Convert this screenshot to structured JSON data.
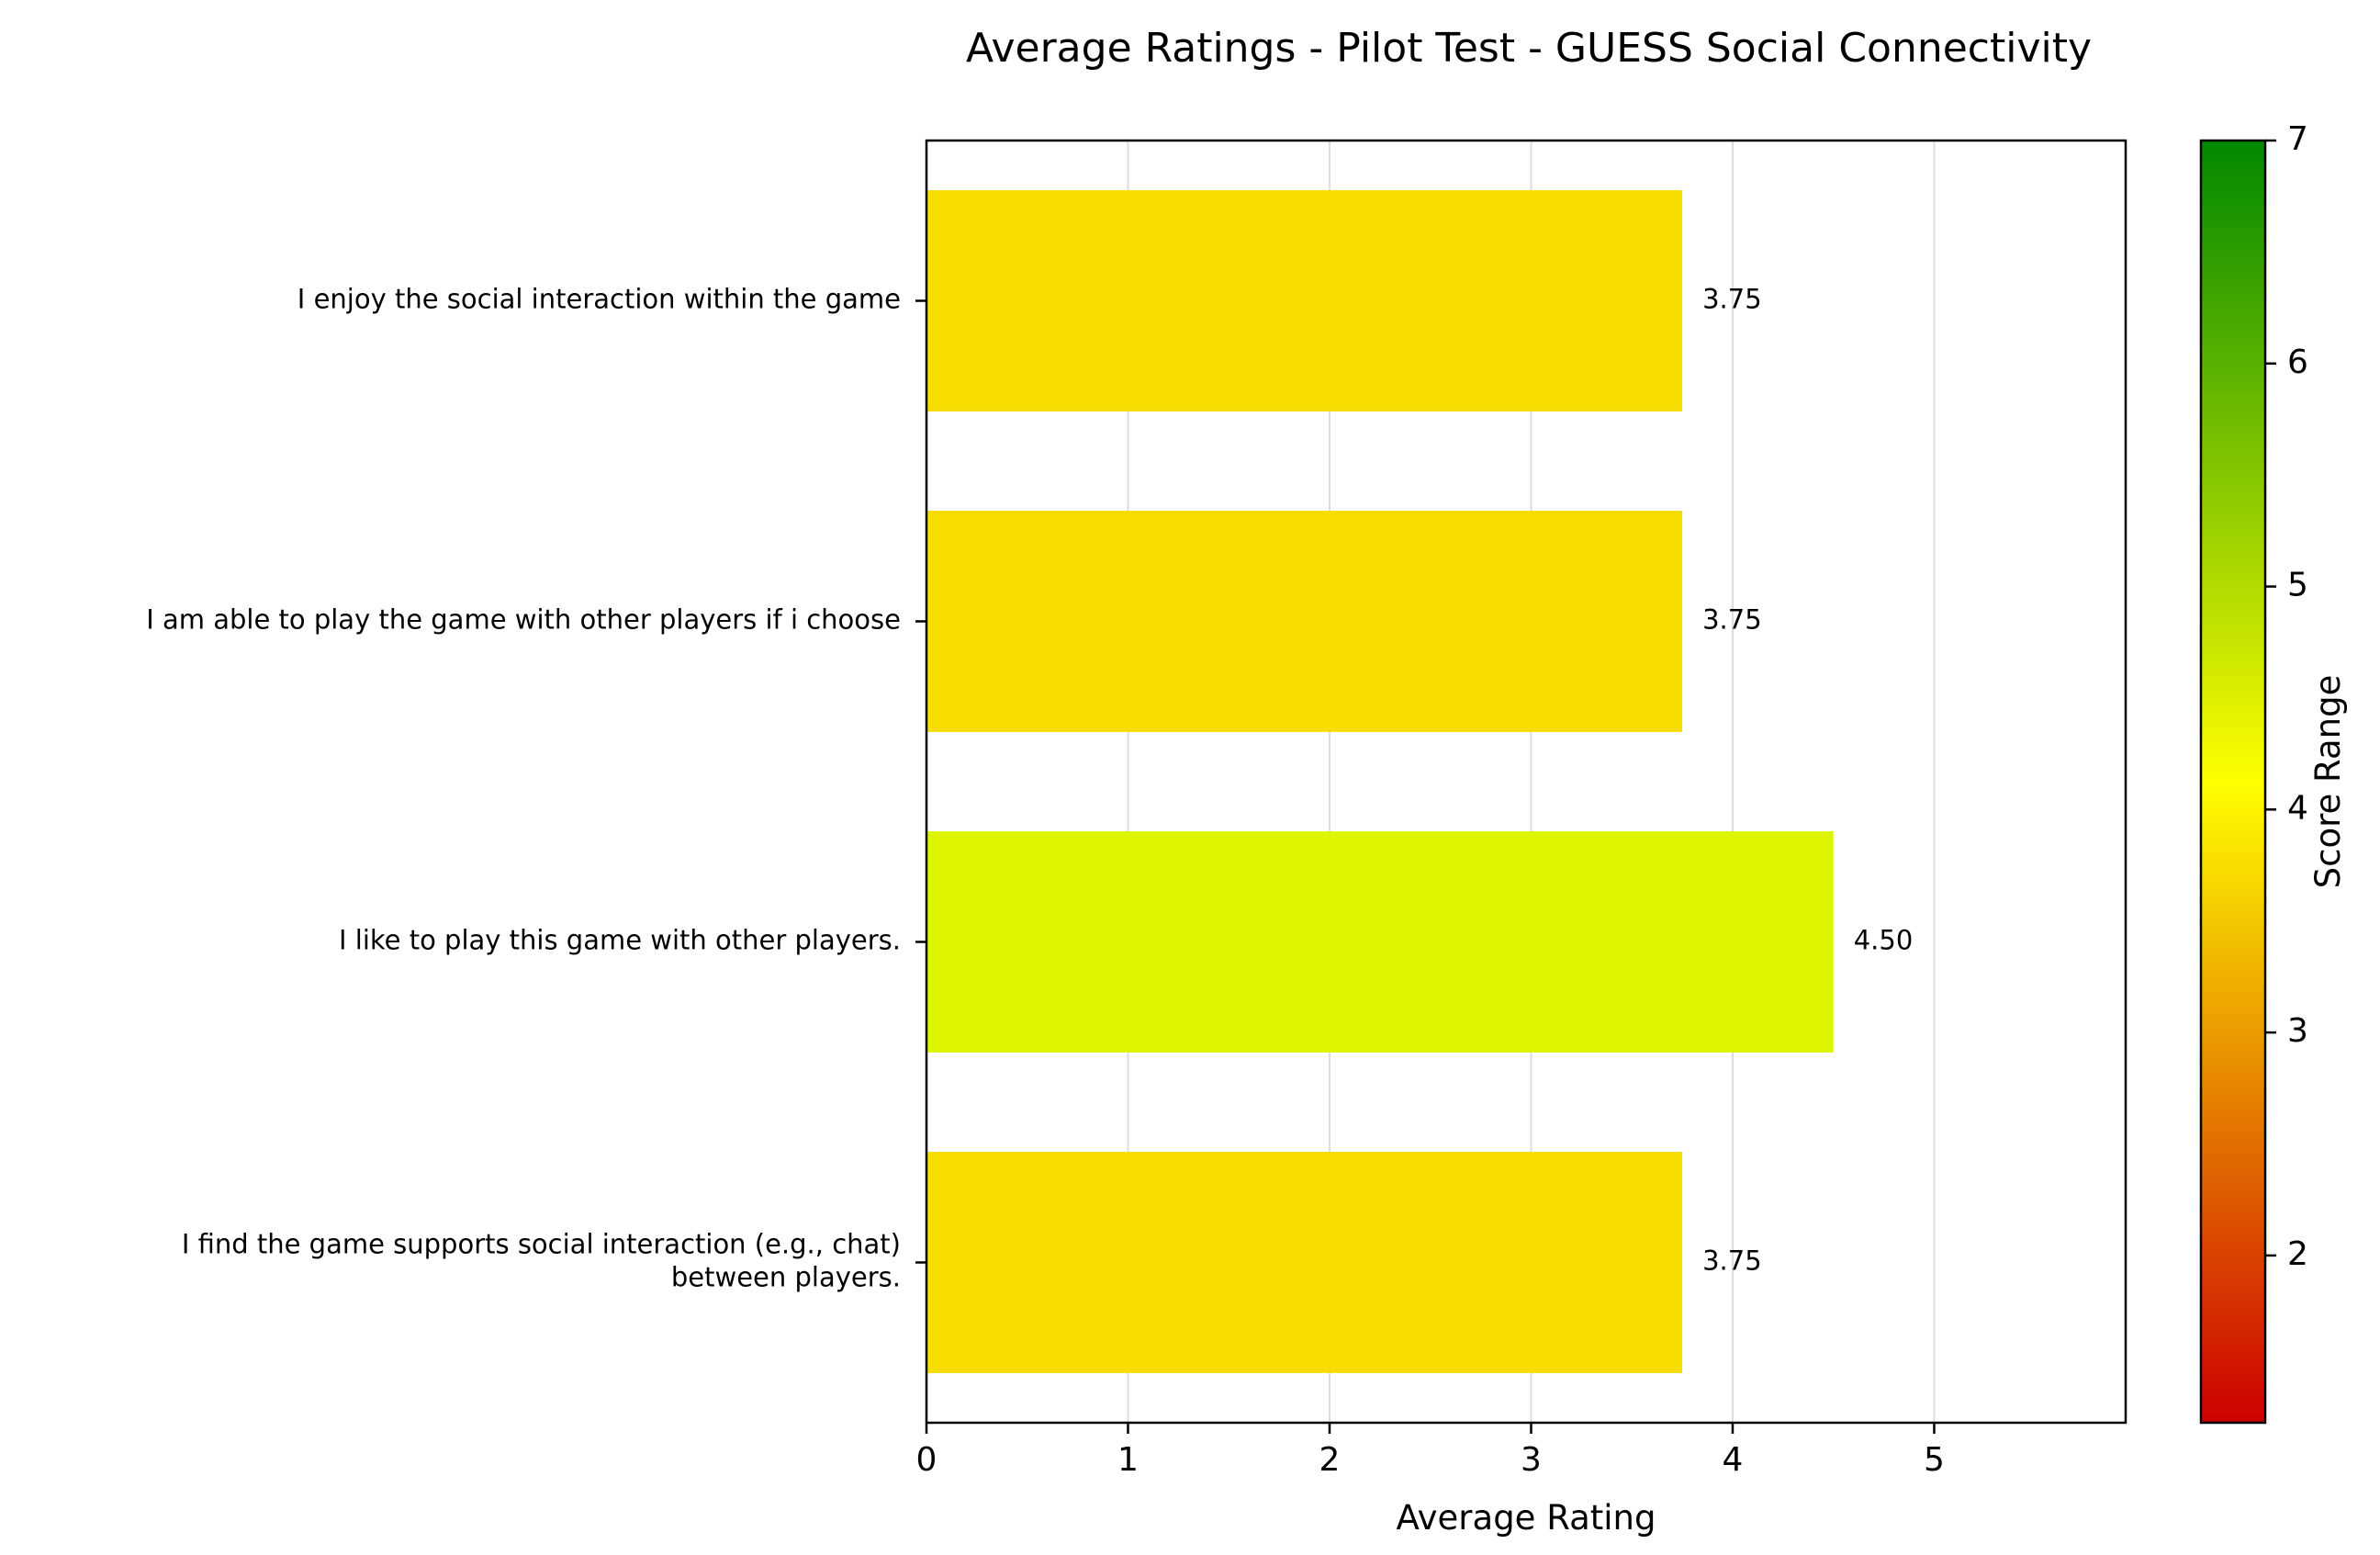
{
  "chart_data": {
    "type": "bar",
    "orientation": "horizontal",
    "title": "Average Ratings - Pilot Test - GUESS Social Connectivity",
    "xlabel": "Average Rating",
    "ylabel": "",
    "xlim": [
      0,
      5.95
    ],
    "xticks": [
      "0",
      "1",
      "2",
      "3",
      "4",
      "5"
    ],
    "grid": "vertical",
    "categories": [
      "I enjoy the social interaction within the game",
      "I am able to play the game with other players if i choose",
      "I like to play this game with other players.",
      "I find the game supports social interaction (e.g., chat)\nbetween players."
    ],
    "values": [
      3.75,
      3.75,
      4.5,
      3.75
    ],
    "data_labels": [
      "3.75",
      "3.75",
      "4.50",
      "3.75"
    ],
    "bar_colors": [
      "#f6dc00",
      "#f6dc00",
      "#dcf400",
      "#f6dc00"
    ],
    "colorbar": {
      "label": "Score Range",
      "min": 1.25,
      "max": 7,
      "ticks": [
        "2",
        "3",
        "4",
        "5",
        "6",
        "7"
      ],
      "colors": [
        "#cc0000",
        "#ffff00",
        "#008800"
      ]
    }
  }
}
